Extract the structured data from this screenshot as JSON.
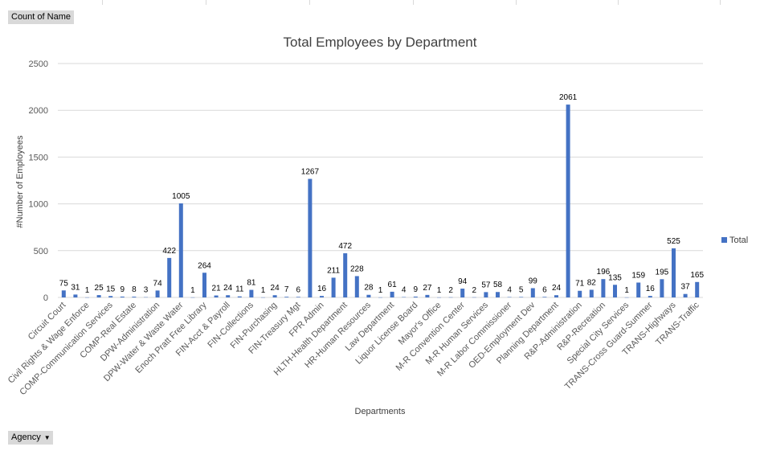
{
  "pivot_fields": {
    "value_field": "Count of  Name",
    "axis_field": "Agency"
  },
  "colors": {
    "bar": "#4472c4",
    "gridline": "#d9d9d9",
    "pill_bg": "#d9d9d9"
  },
  "icons": {
    "dropdown": "dropdown-arrow-icon"
  },
  "chart_data": {
    "type": "bar",
    "title": "Total Employees by Department",
    "xlabel": "Departments",
    "ylabel": "#Number of Employees",
    "ylim": [
      0,
      2500
    ],
    "yticks": [
      "0",
      "500",
      "1000",
      "1500",
      "2000",
      "2500"
    ],
    "grid": true,
    "legend_position": "right",
    "series": [
      {
        "name": "Total",
        "values": [
          75,
          31,
          1,
          25,
          15,
          9,
          8,
          3,
          74,
          422,
          1005,
          1,
          264,
          21,
          24,
          11,
          81,
          1,
          24,
          7,
          6,
          1267,
          16,
          211,
          472,
          228,
          28,
          1,
          61,
          4,
          9,
          27,
          1,
          2,
          94,
          2,
          57,
          58,
          4,
          5,
          99,
          6,
          24,
          2061,
          71,
          82,
          196,
          135,
          1,
          159,
          16,
          195,
          525,
          37,
          165
        ]
      }
    ],
    "tick_labels": [
      "Circuit Court",
      "Civil Rights & Wage Enforce",
      "COMP-Communication Services",
      "COMP-Real Estate",
      "DPW-Administration",
      "DPW-Water & Waste Water",
      "Enoch Pratt Free Library",
      "FIN-Acct & Payroll",
      "FIN-Collections",
      "FIN-Purchasing",
      "FIN-Treasury Mgt",
      "FPR Admin",
      "HLTH-Health Department",
      "HR-Human Resources",
      "Law Department",
      "Liquor License Board",
      "Mayor's Office",
      "M-R Convention Center",
      "M-R Human Services",
      "M-R Labor Commissioner",
      "OED-Employment Dev",
      "Planning Department",
      "R&P-Administration",
      "R&P-Recreation",
      "Special City Services",
      "TRANS-Cross Guard-Summer",
      "TRANS-Highways",
      "TRANS-Traffic"
    ]
  }
}
